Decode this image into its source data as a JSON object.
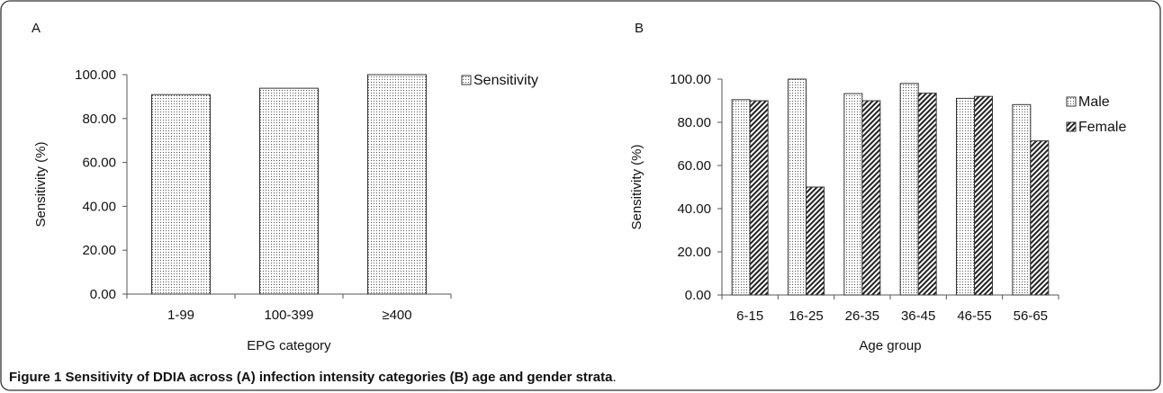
{
  "caption": {
    "label": "Figure 1",
    "text": "Sensitivity of DDIA across (A) infection intensity categories (B) age and gender strata",
    "end": "."
  },
  "colors": {
    "frame": "#333333",
    "text": "#111111",
    "bar_fill": "#ffffff"
  },
  "chart_data": [
    {
      "panel_label": "A",
      "type": "bar",
      "categories": [
        "1-99",
        "100-399",
        "≥400"
      ],
      "series": [
        {
          "name": "Sensitivity",
          "pattern": "dots",
          "values": [
            90.9,
            93.8,
            100.0
          ]
        }
      ],
      "xlabel": "EPG category",
      "ylabel": "Sensitivity (%)",
      "ylim": [
        0,
        100
      ],
      "yticks": [
        "0.00",
        "20.00",
        "40.00",
        "60.00",
        "80.00",
        "100.00"
      ],
      "legend_position": "right",
      "grid": false
    },
    {
      "panel_label": "B",
      "type": "bar",
      "categories": [
        "6-15",
        "16-25",
        "26-35",
        "36-45",
        "46-55",
        "56-65"
      ],
      "series": [
        {
          "name": "Male",
          "pattern": "dots",
          "values": [
            90.5,
            100.0,
            93.3,
            98.0,
            91.1,
            88.2
          ]
        },
        {
          "name": "Female",
          "pattern": "hatch",
          "values": [
            90.0,
            50.0,
            90.0,
            93.5,
            92.0,
            71.4
          ]
        }
      ],
      "xlabel": "Age group",
      "ylabel": "Sensitivity (%)",
      "ylim": [
        0,
        100
      ],
      "yticks": [
        "0.00",
        "20.00",
        "40.00",
        "60.00",
        "80.00",
        "100.00"
      ],
      "legend_position": "right",
      "grid": false
    }
  ]
}
